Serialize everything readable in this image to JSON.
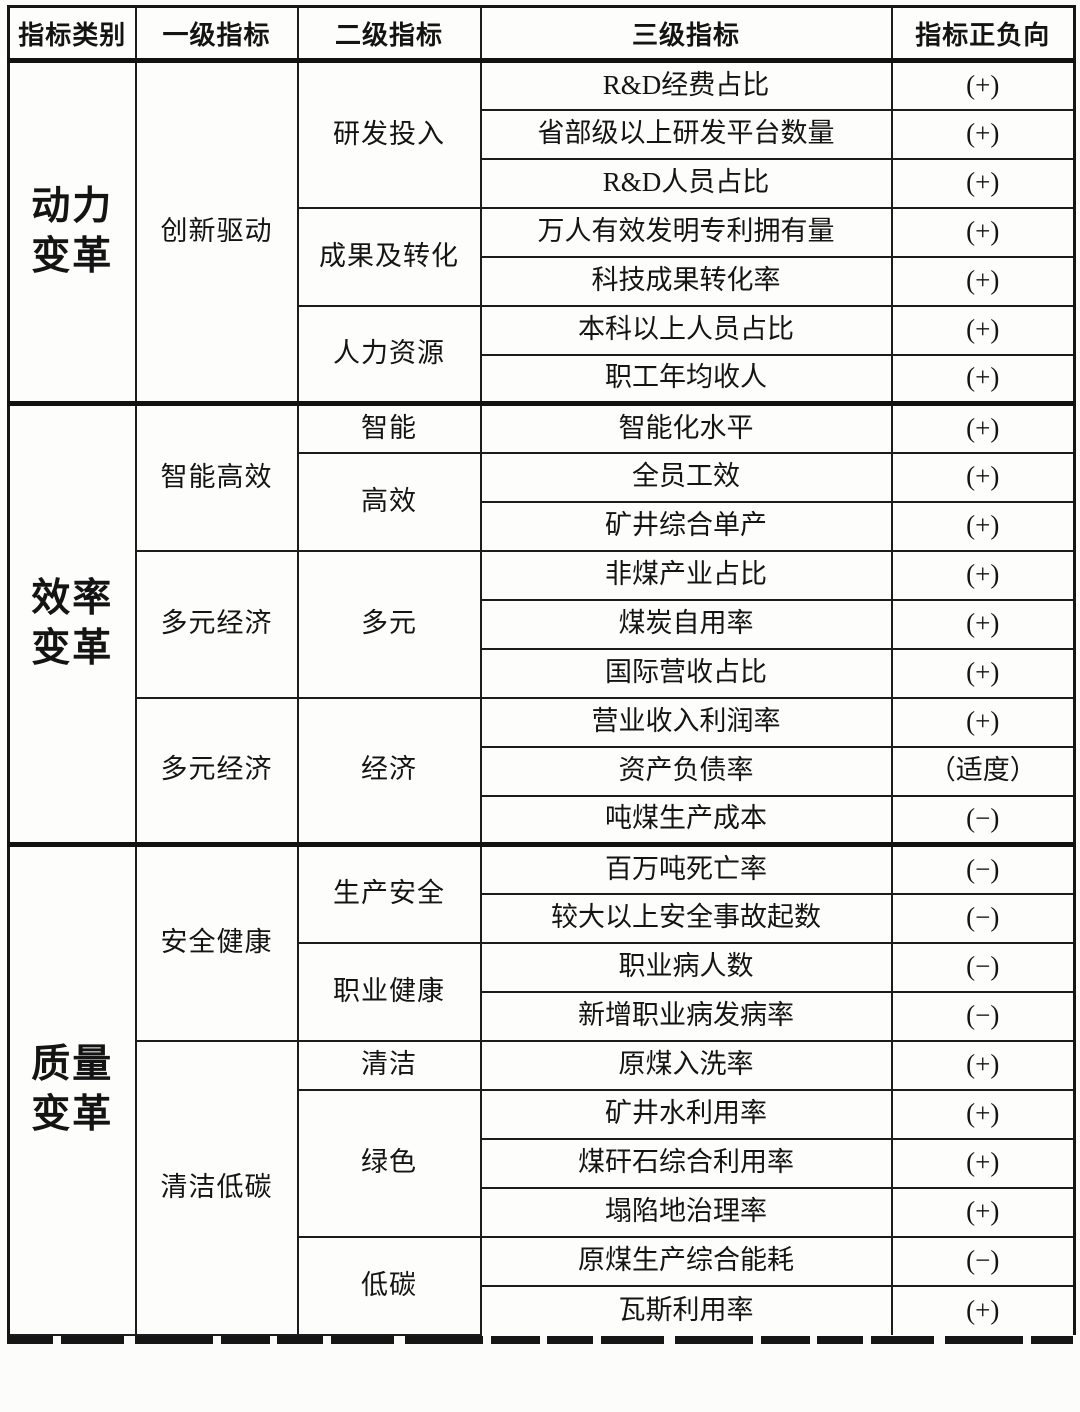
{
  "colors": {
    "page_background": "#fcfcfb",
    "text": "#141414",
    "border": "#1c1c1c"
  },
  "table": {
    "headers": [
      "指标类别",
      "一级指标",
      "二级指标",
      "三级指标",
      "指标正负向"
    ],
    "sections": [
      {
        "category": "动力变革",
        "groups": [
          {
            "level1": "创新驱动",
            "subgroups": [
              {
                "level2": "研发投入",
                "items": [
                  {
                    "name": "R&D经费占比",
                    "direction": "(+)"
                  },
                  {
                    "name": "省部级以上研发平台数量",
                    "direction": "(+)"
                  },
                  {
                    "name": "R&D人员占比",
                    "direction": "(+)"
                  }
                ]
              },
              {
                "level2": "成果及转化",
                "items": [
                  {
                    "name": "万人有效发明专利拥有量",
                    "direction": "(+)"
                  },
                  {
                    "name": "科技成果转化率",
                    "direction": "(+)"
                  }
                ]
              },
              {
                "level2": "人力资源",
                "items": [
                  {
                    "name": "本科以上人员占比",
                    "direction": "(+)"
                  },
                  {
                    "name": "职工年均收人",
                    "direction": "(+)"
                  }
                ]
              }
            ]
          }
        ]
      },
      {
        "category": "效率变革",
        "groups": [
          {
            "level1": "智能高效",
            "subgroups": [
              {
                "level2": "智能",
                "items": [
                  {
                    "name": "智能化水平",
                    "direction": "(+)"
                  }
                ]
              },
              {
                "level2": "高效",
                "items": [
                  {
                    "name": "全员工效",
                    "direction": "(+)"
                  },
                  {
                    "name": "矿井综合单产",
                    "direction": "(+)"
                  }
                ]
              }
            ]
          },
          {
            "level1": "多元经济",
            "subgroups": [
              {
                "level2": "多元",
                "items": [
                  {
                    "name": "非煤产业占比",
                    "direction": "(+)"
                  },
                  {
                    "name": "煤炭自用率",
                    "direction": "(+)"
                  },
                  {
                    "name": "国际营收占比",
                    "direction": "(+)"
                  }
                ]
              }
            ]
          },
          {
            "level1": "多元经济",
            "subgroups": [
              {
                "level2": "经济",
                "items": [
                  {
                    "name": "营业收入利润率",
                    "direction": "(+)"
                  },
                  {
                    "name": "资产负债率",
                    "direction": "（适度）"
                  },
                  {
                    "name": "吨煤生产成本",
                    "direction": "(−)"
                  }
                ]
              }
            ]
          }
        ]
      },
      {
        "category": "质量变革",
        "groups": [
          {
            "level1": "安全健康",
            "subgroups": [
              {
                "level2": "生产安全",
                "items": [
                  {
                    "name": "百万吨死亡率",
                    "direction": "(−)"
                  },
                  {
                    "name": "较大以上安全事故起数",
                    "direction": "(−)"
                  }
                ]
              },
              {
                "level2": "职业健康",
                "items": [
                  {
                    "name": "职业病人数",
                    "direction": "(−)"
                  },
                  {
                    "name": "新增职业病发病率",
                    "direction": "(−)"
                  }
                ]
              }
            ]
          },
          {
            "level1": "清洁低碳",
            "subgroups": [
              {
                "level2": "清洁",
                "items": [
                  {
                    "name": "原煤入洗率",
                    "direction": "(+)"
                  }
                ]
              },
              {
                "level2": "绿色",
                "items": [
                  {
                    "name": "矿井水利用率",
                    "direction": "(+)"
                  },
                  {
                    "name": "煤矸石综合利用率",
                    "direction": "(+)"
                  },
                  {
                    "name": "塌陷地治理率",
                    "direction": "(+)"
                  }
                ]
              },
              {
                "level2": "低碳",
                "items": [
                  {
                    "name": "原煤生产综合能耗",
                    "direction": "(−)"
                  },
                  {
                    "name": "瓦斯利用率",
                    "direction": "(+)"
                  }
                ]
              }
            ]
          }
        ]
      }
    ]
  }
}
